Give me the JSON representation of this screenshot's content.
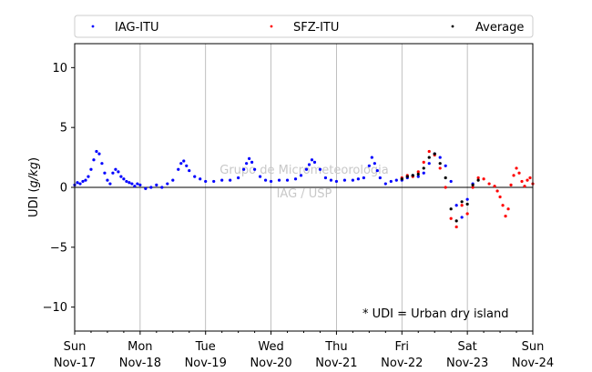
{
  "chart_data": {
    "type": "scatter",
    "ylabel_prefix": "UDI (",
    "ylabel_unit": "g/kg",
    "ylabel_suffix": ")",
    "ylim": [
      -12,
      12
    ],
    "yticks": [
      -10,
      -5,
      0,
      5,
      10
    ],
    "ytick_labels": [
      "−10",
      "−5",
      "0",
      "5",
      "10"
    ],
    "x_range": [
      "2019-11-17 00:00",
      "2019-11-24 00:00"
    ],
    "xticks": [
      {
        "day": "Sun",
        "date": "Nov-17"
      },
      {
        "day": "Mon",
        "date": "Nov-18"
      },
      {
        "day": "Tue",
        "date": "Nov-19"
      },
      {
        "day": "Wed",
        "date": "Nov-20"
      },
      {
        "day": "Thu",
        "date": "Nov-21"
      },
      {
        "day": "Fri",
        "date": "Nov-22"
      },
      {
        "day": "Sat",
        "date": "Nov-23"
      },
      {
        "day": "Sun",
        "date": "Nov-24"
      }
    ],
    "grid": "vertical at day boundaries",
    "zero_line": true,
    "legend_placement": "top, above plot",
    "annotation": "* UDI = Urban dry island",
    "watermark": [
      "Grupo de Micrometeorologia",
      "IAG / USP"
    ],
    "series": [
      {
        "name": "IAG-ITU",
        "color": "#0000ff",
        "marker": "dot",
        "x": [
          "2019-11-17 00:00",
          "2019-11-17 01:00",
          "2019-11-17 02:00",
          "2019-11-17 03:00",
          "2019-11-17 04:00",
          "2019-11-17 05:00",
          "2019-11-17 06:00",
          "2019-11-17 07:00",
          "2019-11-17 08:00",
          "2019-11-17 09:00",
          "2019-11-17 10:00",
          "2019-11-17 11:00",
          "2019-11-17 12:00",
          "2019-11-17 13:00",
          "2019-11-17 14:00",
          "2019-11-17 15:00",
          "2019-11-17 16:00",
          "2019-11-17 17:00",
          "2019-11-17 18:00",
          "2019-11-17 19:00",
          "2019-11-17 20:00",
          "2019-11-17 21:00",
          "2019-11-17 22:00",
          "2019-11-17 23:00",
          "2019-11-18 00:00",
          "2019-11-18 02:00",
          "2019-11-18 04:00",
          "2019-11-18 06:00",
          "2019-11-18 08:00",
          "2019-11-18 10:00",
          "2019-11-18 12:00",
          "2019-11-18 14:00",
          "2019-11-18 15:00",
          "2019-11-18 16:00",
          "2019-11-18 17:00",
          "2019-11-18 18:00",
          "2019-11-18 20:00",
          "2019-11-18 22:00",
          "2019-11-19 00:00",
          "2019-11-19 03:00",
          "2019-11-19 06:00",
          "2019-11-19 09:00",
          "2019-11-19 12:00",
          "2019-11-19 14:00",
          "2019-11-19 15:00",
          "2019-11-19 16:00",
          "2019-11-19 17:00",
          "2019-11-19 18:00",
          "2019-11-19 20:00",
          "2019-11-19 22:00",
          "2019-11-20 00:00",
          "2019-11-20 03:00",
          "2019-11-20 06:00",
          "2019-11-20 09:00",
          "2019-11-20 11:00",
          "2019-11-20 13:00",
          "2019-11-20 14:00",
          "2019-11-20 15:00",
          "2019-11-20 16:00",
          "2019-11-20 18:00",
          "2019-11-20 20:00",
          "2019-11-20 22:00",
          "2019-11-21 00:00",
          "2019-11-21 03:00",
          "2019-11-21 06:00",
          "2019-11-21 08:00",
          "2019-11-21 10:00",
          "2019-11-21 12:00",
          "2019-11-21 13:00",
          "2019-11-21 14:00",
          "2019-11-21 15:00",
          "2019-11-21 16:00",
          "2019-11-21 18:00",
          "2019-11-21 20:00",
          "2019-11-21 22:00",
          "2019-11-22 00:00",
          "2019-11-22 02:00",
          "2019-11-22 04:00",
          "2019-11-22 06:00",
          "2019-11-22 08:00",
          "2019-11-22 10:00",
          "2019-11-22 12:00",
          "2019-11-22 14:00",
          "2019-11-22 16:00",
          "2019-11-22 18:00",
          "2019-11-22 20:00",
          "2019-11-22 22:00",
          "2019-11-23 00:00",
          "2019-11-23 02:00"
        ],
        "y": [
          0.2,
          0.4,
          0.3,
          0.5,
          0.6,
          0.9,
          1.5,
          2.3,
          3.0,
          2.8,
          2.0,
          1.2,
          0.6,
          0.3,
          1.2,
          1.5,
          1.3,
          0.9,
          0.7,
          0.5,
          0.4,
          0.3,
          0.1,
          0.3,
          0.2,
          -0.1,
          0.0,
          0.2,
          0.0,
          0.3,
          0.6,
          1.5,
          2.0,
          2.2,
          1.8,
          1.4,
          0.9,
          0.7,
          0.5,
          0.5,
          0.6,
          0.6,
          0.8,
          1.5,
          2.0,
          2.4,
          2.1,
          1.5,
          0.9,
          0.6,
          0.5,
          0.6,
          0.6,
          0.7,
          1.0,
          1.5,
          1.9,
          2.3,
          2.1,
          1.5,
          0.8,
          0.6,
          0.5,
          0.6,
          0.6,
          0.7,
          0.8,
          1.8,
          2.5,
          2.0,
          1.4,
          0.8,
          0.3,
          0.5,
          0.6,
          0.6,
          0.8,
          1.0,
          0.9,
          1.2,
          2.0,
          2.8,
          2.5,
          1.8,
          0.5,
          -1.5,
          -2.5,
          -1.0,
          0.3
        ]
      },
      {
        "name": "SFZ-ITU",
        "color": "#ff0000",
        "marker": "dot",
        "x": [
          "2019-11-22 00:00",
          "2019-11-22 02:00",
          "2019-11-22 04:00",
          "2019-11-22 06:00",
          "2019-11-22 08:00",
          "2019-11-22 10:00",
          "2019-11-22 12:00",
          "2019-11-22 14:00",
          "2019-11-22 16:00",
          "2019-11-22 18:00",
          "2019-11-22 20:00",
          "2019-11-22 22:00",
          "2019-11-23 00:00",
          "2019-11-23 02:00",
          "2019-11-23 04:00",
          "2019-11-23 06:00",
          "2019-11-23 08:00",
          "2019-11-23 10:00",
          "2019-11-23 11:00",
          "2019-11-23 12:00",
          "2019-11-23 13:00",
          "2019-11-23 14:00",
          "2019-11-23 15:00",
          "2019-11-23 16:00",
          "2019-11-23 17:00",
          "2019-11-23 18:00",
          "2019-11-23 19:00",
          "2019-11-23 20:00",
          "2019-11-23 21:00",
          "2019-11-23 22:00",
          "2019-11-23 23:00",
          "2019-11-24 00:00"
        ],
        "y": [
          0.8,
          1.0,
          0.9,
          1.3,
          2.1,
          3.0,
          2.7,
          1.6,
          0.0,
          -2.6,
          -3.3,
          -1.5,
          -2.2,
          0.0,
          0.8,
          0.7,
          0.3,
          0.1,
          -0.3,
          -0.8,
          -1.5,
          -2.4,
          -1.8,
          0.2,
          1.0,
          1.6,
          1.2,
          0.5,
          0.1,
          0.6,
          0.8,
          0.3
        ]
      },
      {
        "name": "Average",
        "color": "#000000",
        "marker": "dot",
        "x": [
          "2019-11-22 00:00",
          "2019-11-22 02:00",
          "2019-11-22 04:00",
          "2019-11-22 06:00",
          "2019-11-22 08:00",
          "2019-11-22 10:00",
          "2019-11-22 12:00",
          "2019-11-22 14:00",
          "2019-11-22 16:00",
          "2019-11-22 18:00",
          "2019-11-22 20:00",
          "2019-11-22 22:00",
          "2019-11-23 00:00",
          "2019-11-23 02:00",
          "2019-11-23 04:00"
        ],
        "y": [
          0.7,
          0.9,
          1.0,
          1.1,
          1.6,
          2.5,
          2.8,
          2.0,
          0.8,
          -1.8,
          -2.8,
          -1.2,
          -1.4,
          0.2,
          0.6
        ]
      }
    ]
  }
}
